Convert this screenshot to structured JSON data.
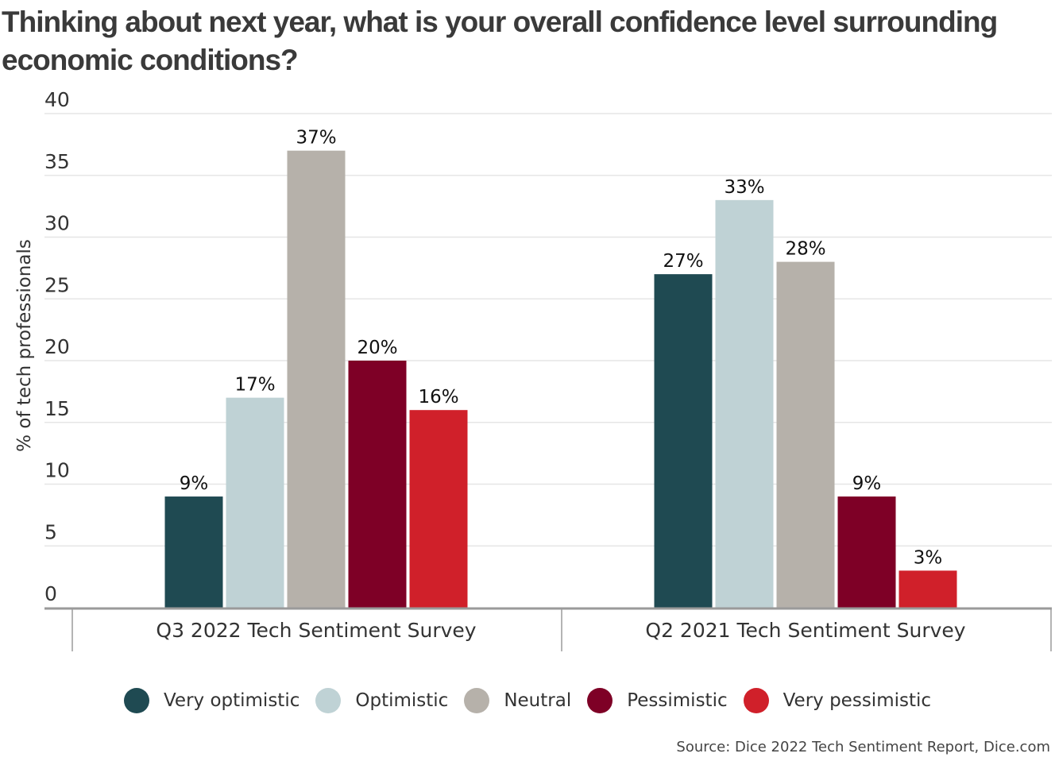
{
  "title": "Thinking about next year, what is your overall confidence level surrounding economic conditions?",
  "source": "Source: Dice 2022 Tech Sentiment Report, Dice.com",
  "chart_data": {
    "type": "bar",
    "categories": [
      "Q3 2022 Tech Sentiment Survey",
      "Q2 2021 Tech Sentiment Survey"
    ],
    "series": [
      {
        "name": "Very optimistic",
        "color": "#1f4a52",
        "values": [
          9,
          27
        ],
        "labels": [
          "9%",
          "27%"
        ]
      },
      {
        "name": "Optimistic",
        "color": "#bfd2d5",
        "values": [
          17,
          33
        ],
        "labels": [
          "17%",
          "33%"
        ]
      },
      {
        "name": "Neutral",
        "color": "#b6b1aa",
        "values": [
          37,
          28
        ],
        "labels": [
          "37%",
          "28%"
        ]
      },
      {
        "name": "Pessimistic",
        "color": "#7e0026",
        "values": [
          20,
          9
        ],
        "labels": [
          "20%",
          "9%"
        ]
      },
      {
        "name": "Very pessimistic",
        "color": "#d0202a",
        "values": [
          16,
          3
        ],
        "labels": [
          "16%",
          "3%"
        ]
      }
    ],
    "ylabel": "% of tech professionals",
    "xlabel": "",
    "ylim": [
      0,
      40
    ],
    "yticks": [
      0,
      5,
      10,
      15,
      20,
      25,
      30,
      35,
      40
    ],
    "grid": true,
    "legend_position": "bottom"
  }
}
